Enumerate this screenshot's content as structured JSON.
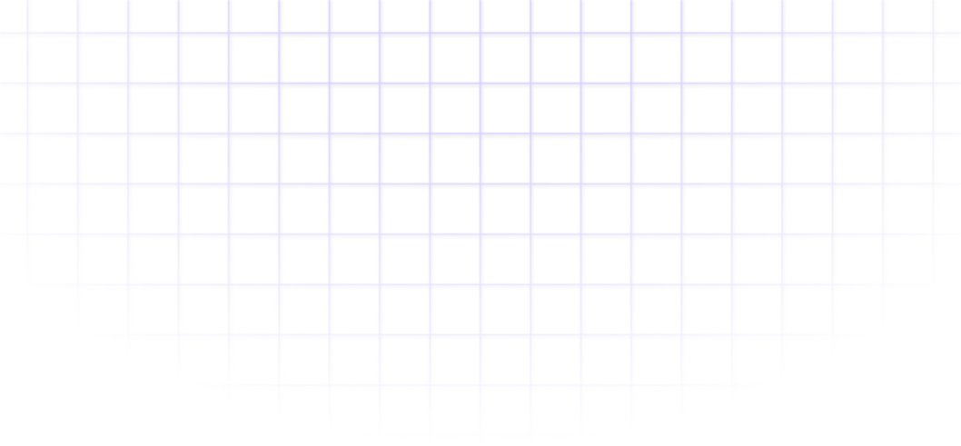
{
  "background": {
    "grid_line_color": "#d6ccff",
    "grid_shadow_color": "#ececf2"
  }
}
